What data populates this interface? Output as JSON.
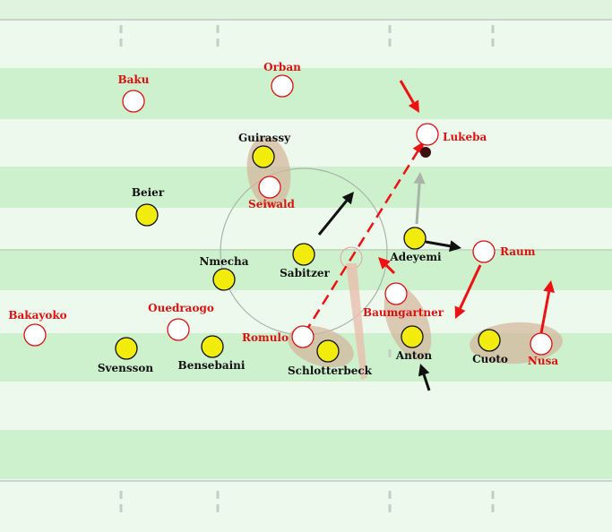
{
  "colors": {
    "stripe_light": "#eef9ee",
    "stripe_dark": "#cdf0cd",
    "line": "#c9d3c9",
    "home_fill": "#f2ec0c",
    "away_fill": "#ffffff",
    "away_stroke": "#e01010",
    "home_arrow": "#111111",
    "away_arrow": "#ee1111",
    "shadow": "#d4b69c",
    "grey_arrow": "#a8b4a8",
    "ball": "#3a1010"
  },
  "home_players": [
    {
      "id": "guirassy",
      "name": "Guirassy"
    },
    {
      "id": "beier",
      "name": "Beier"
    },
    {
      "id": "nmecha",
      "name": "Nmecha"
    },
    {
      "id": "sabitzer",
      "name": "Sabitzer"
    },
    {
      "id": "adeyemi",
      "name": "Adeyemi"
    },
    {
      "id": "svensson",
      "name": "Svensson"
    },
    {
      "id": "bensebaini",
      "name": "Bensebaini"
    },
    {
      "id": "schlotterbeck",
      "name": "Schlotterbeck"
    },
    {
      "id": "anton",
      "name": "Anton"
    },
    {
      "id": "cuoto",
      "name": "Cuoto"
    }
  ],
  "away_players": [
    {
      "id": "baku",
      "name": "Baku"
    },
    {
      "id": "orban",
      "name": "Orban"
    },
    {
      "id": "lukeba",
      "name": "Lukeba"
    },
    {
      "id": "seiwald",
      "name": "Seiwald"
    },
    {
      "id": "raum",
      "name": "Raum"
    },
    {
      "id": "baumgartner",
      "name": "Baumgartner"
    },
    {
      "id": "bakayoko",
      "name": "Bakayoko"
    },
    {
      "id": "ouedraogo",
      "name": "Ouedraogo"
    },
    {
      "id": "romulo",
      "name": "Romulo"
    },
    {
      "id": "nusa",
      "name": "Nusa"
    }
  ]
}
